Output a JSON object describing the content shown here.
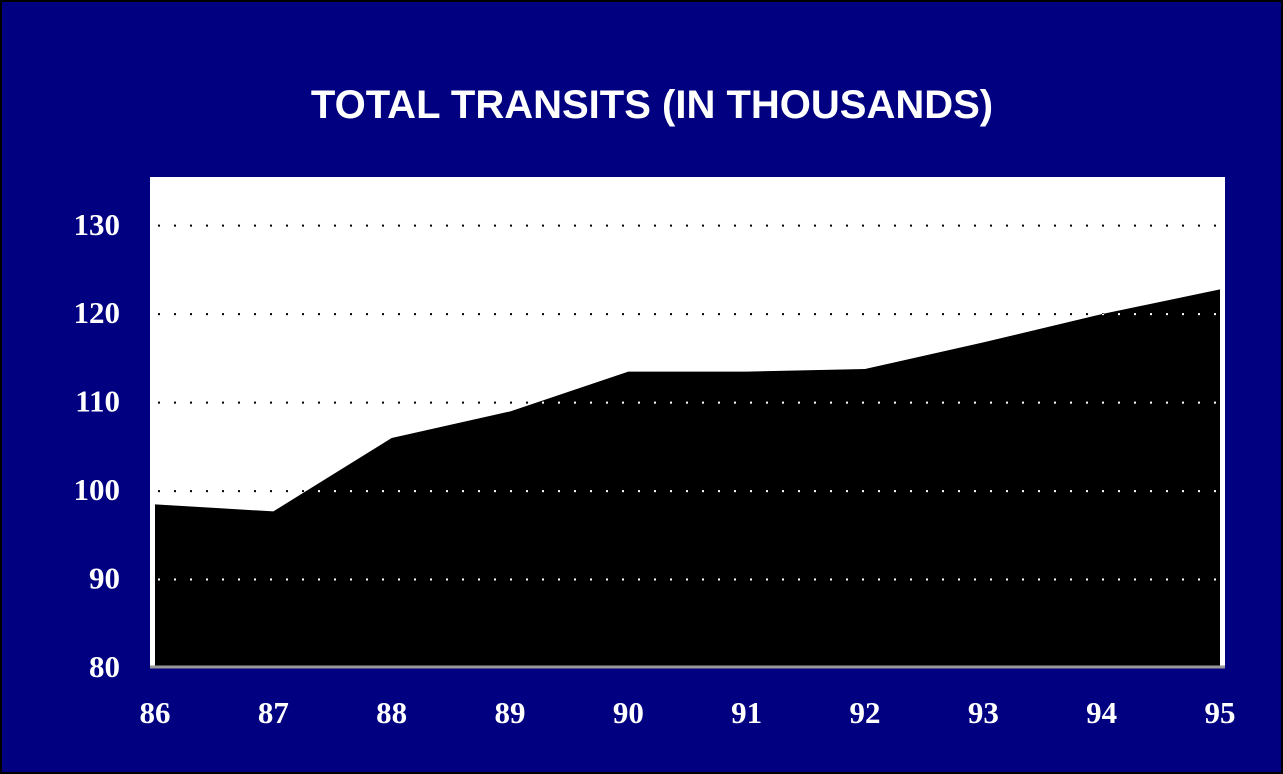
{
  "chart_data": {
    "type": "area",
    "title": "TOTAL TRANSITS (IN THOUSANDS)",
    "categories": [
      "86",
      "87",
      "88",
      "89",
      "90",
      "91",
      "92",
      "93",
      "94",
      "95"
    ],
    "values": [
      98.5,
      97.7,
      106,
      109,
      113.5,
      113.5,
      113.8,
      116.8,
      120,
      122.8
    ],
    "color": "#000000",
    "ylim": [
      80,
      135.5
    ],
    "yticks": [
      80,
      90,
      100,
      110,
      120,
      130
    ],
    "grid": true
  }
}
